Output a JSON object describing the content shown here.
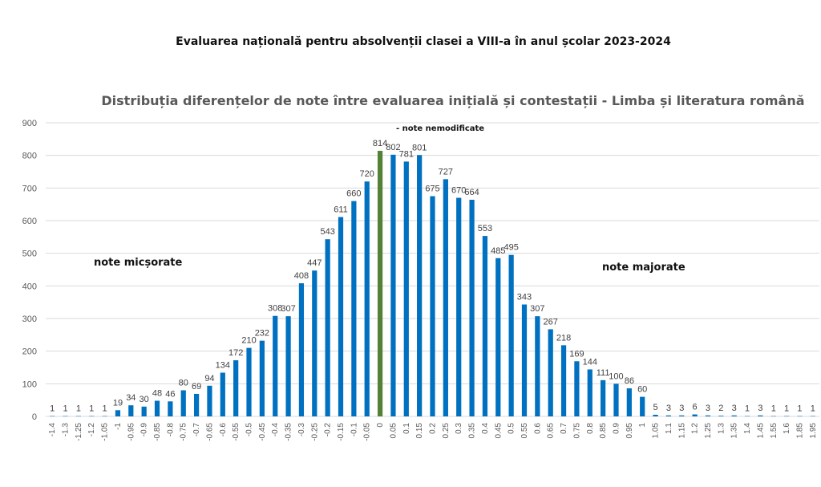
{
  "header": {
    "title": "Evaluarea națională pentru absolvenții clasei a VIII-a în anul școlar 2023-2024"
  },
  "chart_data": {
    "type": "bar",
    "title": "Distribuția diferențelor de note între evaluarea inițială și contestații - Limba și literatura română",
    "xlabel": "",
    "ylabel": "",
    "ylim": [
      0,
      900
    ],
    "yticks": [
      0,
      100,
      200,
      300,
      400,
      500,
      600,
      700,
      800,
      900
    ],
    "grid": true,
    "categories": [
      "-1.4",
      "-1.3",
      "-1.25",
      "-1.2",
      "-1.05",
      "-1",
      "-0.95",
      "-0.9",
      "-0.85",
      "-0.8",
      "-0.75",
      "-0.7",
      "-0.65",
      "-0.6",
      "-0.55",
      "-0.5",
      "-0.45",
      "-0.4",
      "-0.35",
      "-0.3",
      "-0.25",
      "-0.2",
      "-0.15",
      "-0.1",
      "-0.05",
      "0",
      "0.05",
      "0.1",
      "0.15",
      "0.2",
      "0.25",
      "0.3",
      "0.35",
      "0.4",
      "0.45",
      "0.5",
      "0.55",
      "0.6",
      "0.65",
      "0.7",
      "0.75",
      "0.8",
      "0.85",
      "0.9",
      "0.95",
      "1",
      "1.05",
      "1.1",
      "1.15",
      "1.2",
      "1.25",
      "1.3",
      "1.35",
      "1.4",
      "1.45",
      "1.55",
      "1.6",
      "1.85",
      "1.95"
    ],
    "values": [
      1,
      1,
      1,
      1,
      1,
      19,
      34,
      30,
      48,
      46,
      80,
      69,
      94,
      134,
      172,
      210,
      232,
      308,
      307,
      408,
      447,
      543,
      611,
      660,
      720,
      814,
      802,
      781,
      801,
      675,
      727,
      670,
      664,
      553,
      485,
      495,
      343,
      307,
      267,
      218,
      169,
      144,
      111,
      100,
      86,
      60,
      5,
      3,
      3,
      6,
      3,
      2,
      3,
      1,
      3,
      1,
      1,
      1,
      1
    ],
    "colors": {
      "bar": "#0070C0",
      "highlight": "#538135",
      "grid": "#d9d9d9"
    },
    "highlight_category": "0",
    "annotations": {
      "left": "note micșorate",
      "right": "note majorate",
      "top": "- note nemodificate"
    }
  }
}
